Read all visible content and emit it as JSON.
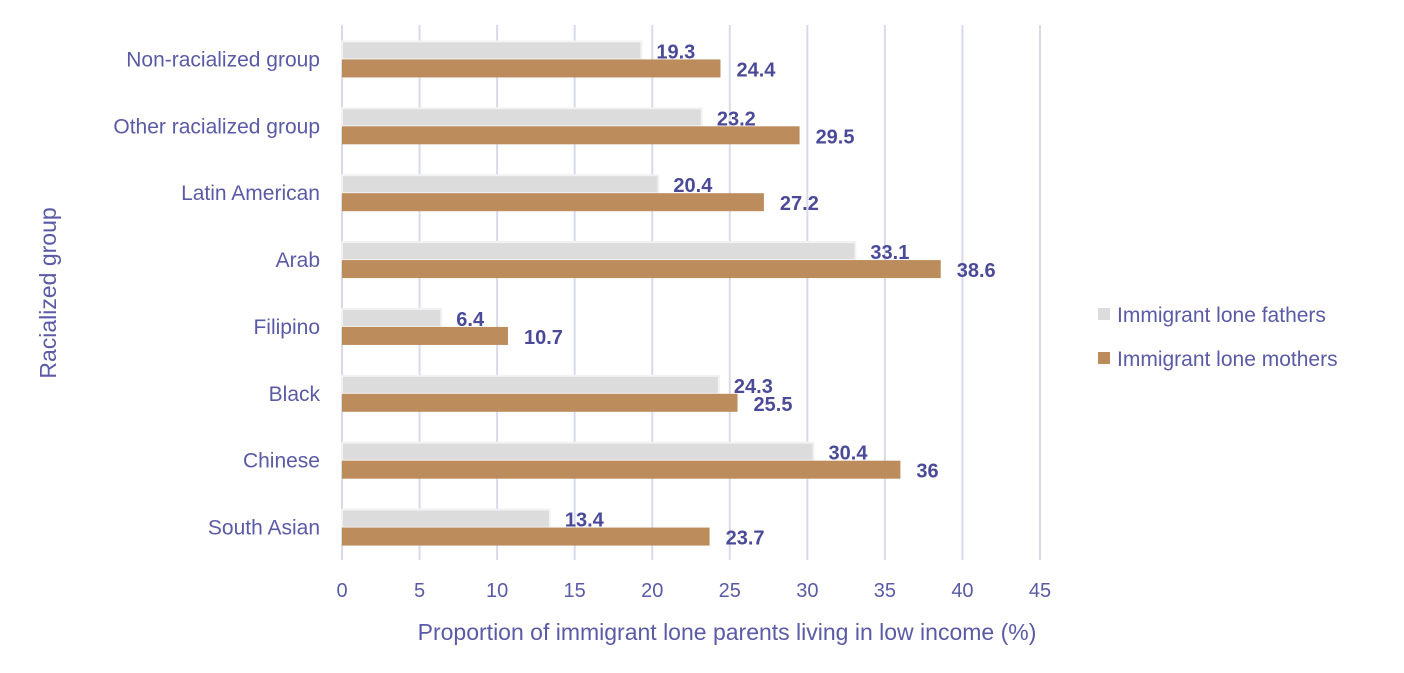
{
  "chart_data": {
    "type": "bar",
    "orientation": "horizontal",
    "title": "",
    "xlabel": "Proportion of immigrant lone parents living in low income (%)",
    "ylabel": "Racialized group",
    "xlim": [
      0,
      45
    ],
    "xticks": [
      0,
      5,
      10,
      15,
      20,
      25,
      30,
      35,
      40,
      45
    ],
    "grid": "vertical",
    "legend_position": "right",
    "categories": [
      "Non-racialized group",
      "Other racialized group",
      "Latin American",
      "Arab",
      "Filipino",
      "Black",
      "Chinese",
      "South Asian"
    ],
    "series": [
      {
        "name": "Immigrant lone fathers",
        "color": "#dcdcdc",
        "values": [
          19.3,
          23.2,
          20.4,
          33.1,
          6.4,
          24.3,
          30.4,
          13.4
        ]
      },
      {
        "name": "Immigrant lone mothers",
        "color": "#bc8c5c",
        "values": [
          24.4,
          29.5,
          27.2,
          38.6,
          10.7,
          25.5,
          36,
          23.7
        ]
      }
    ]
  }
}
